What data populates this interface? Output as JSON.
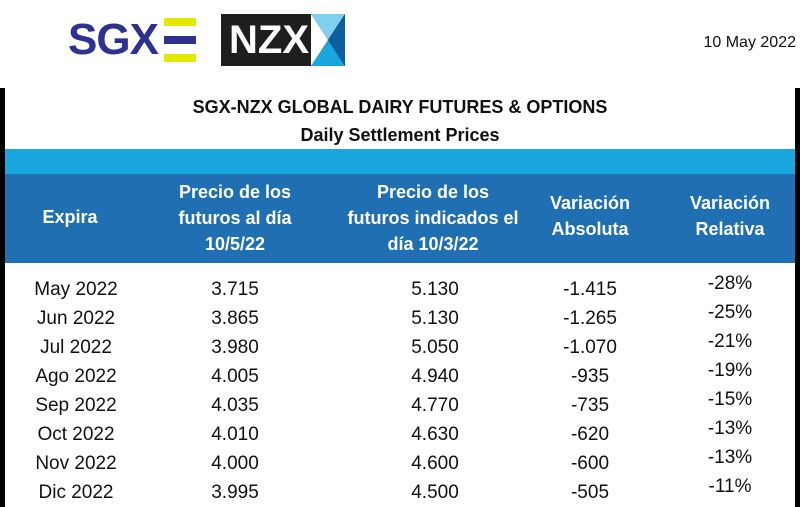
{
  "header": {
    "logo_left": "SGX",
    "logo_right": "NZX",
    "date": "10 May 2022"
  },
  "table": {
    "title": "SGX-NZX GLOBAL DAIRY FUTURES & OPTIONS",
    "subtitle": "Daily Settlement Prices",
    "columns": [
      "Expira",
      "Precio de los\nfuturos al día\n10/5/22",
      "Precio de los\nfuturos indicados el\ndía 10/3/22",
      "Variación\nAbsoluta",
      "Variación\nRelativa"
    ],
    "rows": [
      {
        "expira": "May 2022",
        "futuros": "3.715",
        "indicados": "5.130",
        "abs": "-1.415",
        "rel": "-28%"
      },
      {
        "expira": "Jun 2022",
        "futuros": "3.865",
        "indicados": "5.130",
        "abs": "-1.265",
        "rel": "-25%"
      },
      {
        "expira": "Jul 2022",
        "futuros": "3.980",
        "indicados": "5.050",
        "abs": "-1.070",
        "rel": "-21%"
      },
      {
        "expira": "Ago 2022",
        "futuros": "4.005",
        "indicados": "4.940",
        "abs": "-935",
        "rel": "-19%"
      },
      {
        "expira": "Sep 2022",
        "futuros": "4.035",
        "indicados": "4.770",
        "abs": "-735",
        "rel": "-15%"
      },
      {
        "expira": "Oct 2022",
        "futuros": "4.010",
        "indicados": "4.630",
        "abs": "-620",
        "rel": "-13%"
      },
      {
        "expira": "Nov 2022",
        "futuros": "4.000",
        "indicados": "4.600",
        "abs": "-600",
        "rel": "-13%"
      },
      {
        "expira": "Dic 2022",
        "futuros": "3.995",
        "indicados": "4.500",
        "abs": "-505",
        "rel": "-11%"
      }
    ]
  },
  "colors": {
    "band_light": "#1aa7e0",
    "band_dark": "#1f6fb2",
    "sgx_blue": "#2e3192",
    "sgx_yellow": "#e5e800"
  }
}
